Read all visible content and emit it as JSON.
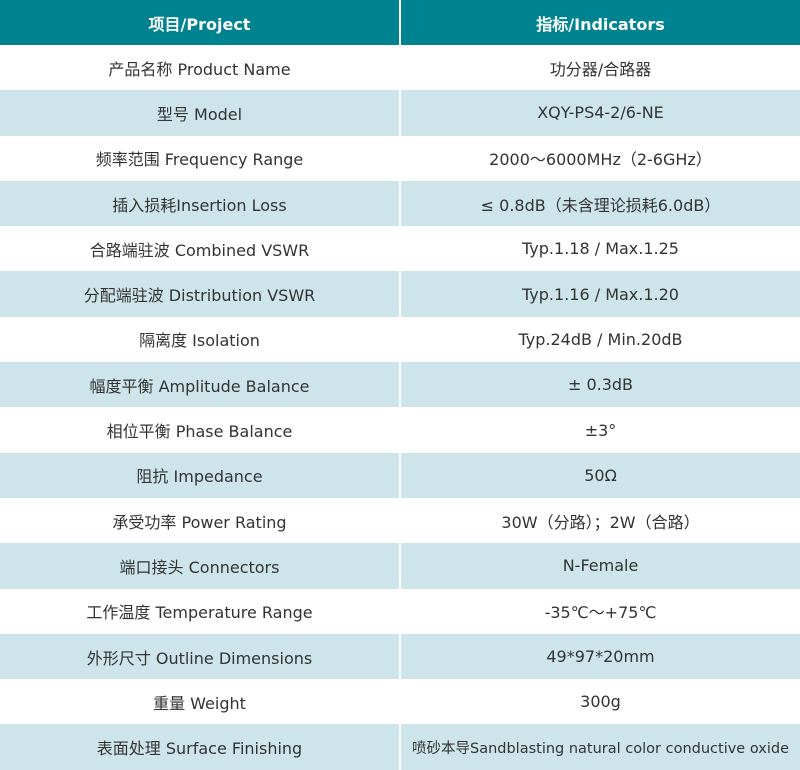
{
  "header": {
    "project": "项目/Project",
    "indicators": "指标/Indicators"
  },
  "colors": {
    "header_bg": "#008390",
    "alt_row_bg": "#cde5ea"
  },
  "rows": [
    {
      "project": "产品名称 Product Name",
      "indicator": "功分器/合路器"
    },
    {
      "project": "型号 Model",
      "indicator": "XQY-PS4-2/6-NE"
    },
    {
      "project": "频率范围 Frequency Range",
      "indicator": "2000～6000MHz（2-6GHz）"
    },
    {
      "project": "插入损耗Insertion Loss",
      "indicator": "≤ 0.8dB（未含理论损耗6.0dB）"
    },
    {
      "project": "合路端驻波 Combined VSWR",
      "indicator": "Typ.1.18 / Max.1.25"
    },
    {
      "project": "分配端驻波 Distribution VSWR",
      "indicator": "Typ.1.16 / Max.1.20"
    },
    {
      "project": "隔离度 Isolation",
      "indicator": "Typ.24dB / Min.20dB"
    },
    {
      "project": "幅度平衡 Amplitude Balance",
      "indicator": "± 0.3dB"
    },
    {
      "project": "相位平衡 Phase Balance",
      "indicator": "±3°"
    },
    {
      "project": "阻抗 Impedance",
      "indicator": "50Ω"
    },
    {
      "project": "承受功率 Power Rating",
      "indicator": "30W（分路）；2W（合路）"
    },
    {
      "project": "端口接头 Connectors",
      "indicator": "N-Female"
    },
    {
      "project": "工作温度 Temperature Range",
      "indicator": "-35℃～+75℃"
    },
    {
      "project": "外形尺寸 Outline Dimensions",
      "indicator": "49*97*20mm"
    },
    {
      "project": "重量 Weight",
      "indicator": "300g"
    },
    {
      "project": "表面处理 Surface Finishing",
      "indicator": "喷砂本导Sandblasting natural color conductive oxide"
    }
  ]
}
